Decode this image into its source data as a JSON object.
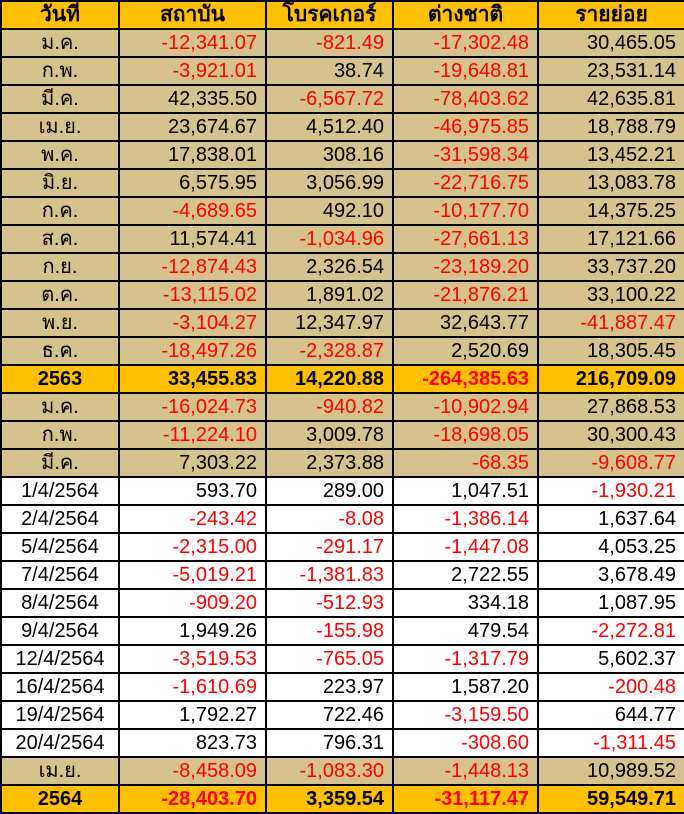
{
  "chart_data": {
    "type": "table",
    "columns": [
      "วันที่",
      "สถาบัน",
      "โบรคเกอร์",
      "ต่างชาติ",
      "รายย่อย"
    ],
    "rows": [
      {
        "label": "ม.ค.",
        "row_style": "month",
        "values": [
          "-12,341.07",
          "-821.49",
          "-17,302.48",
          "30,465.05"
        ]
      },
      {
        "label": "ก.พ.",
        "row_style": "month",
        "values": [
          "-3,921.01",
          "38.74",
          "-19,648.81",
          "23,531.14"
        ]
      },
      {
        "label": "มี.ค.",
        "row_style": "month",
        "values": [
          "42,335.50",
          "-6,567.72",
          "-78,403.62",
          "42,635.81"
        ]
      },
      {
        "label": "เม.ย.",
        "row_style": "month",
        "values": [
          "23,674.67",
          "4,512.40",
          "-46,975.85",
          "18,788.79"
        ]
      },
      {
        "label": "พ.ค.",
        "row_style": "month",
        "values": [
          "17,838.01",
          "308.16",
          "-31,598.34",
          "13,452.21"
        ]
      },
      {
        "label": "มิ.ย.",
        "row_style": "month",
        "values": [
          "6,575.95",
          "3,056.99",
          "-22,716.75",
          "13,083.78"
        ]
      },
      {
        "label": "ก.ค.",
        "row_style": "month",
        "values": [
          "-4,689.65",
          "492.10",
          "-10,177.70",
          "14,375.25"
        ]
      },
      {
        "label": "ส.ค.",
        "row_style": "month",
        "values": [
          "11,574.41",
          "-1,034.96",
          "-27,661.13",
          "17,121.66"
        ]
      },
      {
        "label": "ก.ย.",
        "row_style": "month",
        "values": [
          "-12,874.43",
          "2,326.54",
          "-23,189.20",
          "33,737.20"
        ]
      },
      {
        "label": "ต.ค.",
        "row_style": "month",
        "values": [
          "-13,115.02",
          "1,891.02",
          "-21,876.21",
          "33,100.22"
        ]
      },
      {
        "label": "พ.ย.",
        "row_style": "month",
        "values": [
          "-3,104.27",
          "12,347.97",
          "32,643.77",
          "-41,887.47"
        ]
      },
      {
        "label": "ธ.ค.",
        "row_style": "month",
        "values": [
          "-18,497.26",
          "-2,328.87",
          "2,520.69",
          "18,305.45"
        ]
      },
      {
        "label": "2563",
        "row_style": "total",
        "values": [
          "33,455.83",
          "14,220.88",
          "-264,385.63",
          "216,709.09"
        ]
      },
      {
        "label": "ม.ค.",
        "row_style": "month",
        "values": [
          "-16,024.73",
          "-940.82",
          "-10,902.94",
          "27,868.53"
        ]
      },
      {
        "label": "ก.พ.",
        "row_style": "month",
        "values": [
          "-11,224.10",
          "3,009.78",
          "-18,698.05",
          "30,300.43"
        ]
      },
      {
        "label": "มี.ค.",
        "row_style": "month",
        "values": [
          "7,303.22",
          "2,373.88",
          "-68.35",
          "-9,608.77"
        ]
      },
      {
        "label": "1/4/2564",
        "row_style": "day",
        "values": [
          "593.70",
          "289.00",
          "1,047.51",
          "-1,930.21"
        ]
      },
      {
        "label": "2/4/2564",
        "row_style": "day",
        "values": [
          "-243.42",
          "-8.08",
          "-1,386.14",
          "1,637.64"
        ]
      },
      {
        "label": "5/4/2564",
        "row_style": "day",
        "values": [
          "-2,315.00",
          "-291.17",
          "-1,447.08",
          "4,053.25"
        ]
      },
      {
        "label": "7/4/2564",
        "row_style": "day",
        "values": [
          "-5,019.21",
          "-1,381.83",
          "2,722.55",
          "3,678.49"
        ]
      },
      {
        "label": "8/4/2564",
        "row_style": "day",
        "values": [
          "-909.20",
          "-512.93",
          "334.18",
          "1,087.95"
        ]
      },
      {
        "label": "9/4/2564",
        "row_style": "day",
        "values": [
          "1,949.26",
          "-155.98",
          "479.54",
          "-2,272.81"
        ]
      },
      {
        "label": "12/4/2564",
        "row_style": "day",
        "values": [
          "-3,519.53",
          "-765.05",
          "-1,317.79",
          "5,602.37"
        ]
      },
      {
        "label": "16/4/2564",
        "row_style": "day",
        "values": [
          "-1,610.69",
          "223.97",
          "1,587.20",
          "-200.48"
        ]
      },
      {
        "label": "19/4/2564",
        "row_style": "day",
        "values": [
          "1,792.27",
          "722.46",
          "-3,159.50",
          "644.77"
        ]
      },
      {
        "label": "20/4/2564",
        "row_style": "day",
        "values": [
          "823.73",
          "796.31",
          "-308.60",
          "-1,311.45"
        ]
      },
      {
        "label": "เม.ย.",
        "row_style": "month",
        "values": [
          "-8,458.09",
          "-1,083.30",
          "-1,448.13",
          "10,989.52"
        ]
      },
      {
        "label": "2564",
        "row_style": "total",
        "values": [
          "-28,403.70",
          "3,359.54",
          "-31,117.47",
          "59,549.71"
        ]
      }
    ]
  },
  "colors": {
    "header_bg": "#FFC000",
    "month_row_bg": "#D5C28C",
    "day_row_bg": "#FFFFFF",
    "total_row_bg": "#FFC000",
    "negative_text": "#FF0000",
    "positive_text": "#000000",
    "border": "#000000"
  }
}
